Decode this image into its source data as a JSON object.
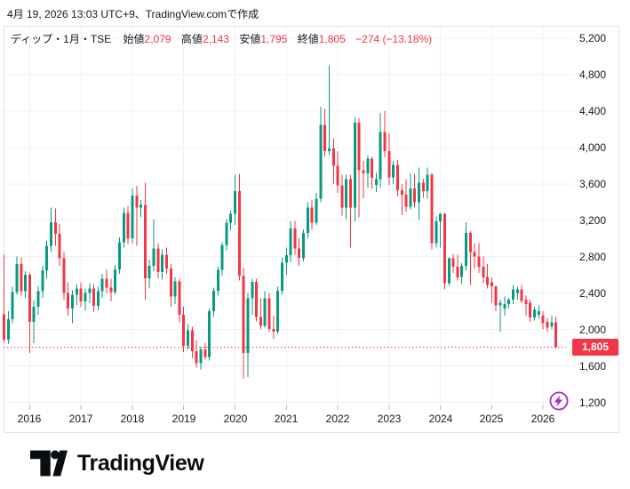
{
  "header": {
    "created_text": "4月 19, 2026 13:03 UTC+9、TradingView.comで作成"
  },
  "legend": {
    "symbol": "ディップ・1月・TSE",
    "open_label": "始値",
    "open_value": "2,079",
    "high_label": "高値",
    "high_value": "2,143",
    "low_label": "安値",
    "low_value": "1,795",
    "close_label": "終値",
    "close_value": "1,805",
    "change_value": "−274 (−13.18%)"
  },
  "price_axis": {
    "last_price_badge": "1,805"
  },
  "footer": {
    "brand": "TradingView",
    "logomark_icon": "tradingview-logomark"
  },
  "boost_button": {
    "icon": "lightning-icon"
  },
  "colors": {
    "up": "#089981",
    "down": "#F23645",
    "grid": "#EFF1F4",
    "frame": "#E0E3EB",
    "tick": "#B8BCC6",
    "text": "#131722",
    "badge_bg": "#F23645",
    "badge_text": "#FFFFFF",
    "accent_purple": "#A62BC6",
    "background": "#FFFFFF"
  },
  "chart_data": {
    "type": "candlestick",
    "title": "ディップ・1月・TSE",
    "symbol": "ディップ",
    "interval": "1月",
    "exchange": "TSE",
    "grid": true,
    "last_price": 1805,
    "price_line": {
      "value": 1805,
      "style": "dotted",
      "color": "#F23645"
    },
    "y_ticks": [
      5200,
      4800,
      4400,
      4000,
      3600,
      3200,
      2800,
      2400,
      2000,
      1600,
      1200
    ],
    "y_range_visible": [
      1130,
      5340
    ],
    "x_ticks": [
      "2016",
      "2017",
      "2018",
      "2019",
      "2020",
      "2021",
      "2022",
      "2023",
      "2024",
      "2025",
      "2026"
    ],
    "candle_fields": [
      "month",
      "open",
      "high",
      "low",
      "close"
    ],
    "candles": [
      [
        "2015-07",
        2165,
        2820,
        1855,
        1890
      ],
      [
        "2015-08",
        1890,
        2200,
        1845,
        2115
      ],
      [
        "2015-09",
        2115,
        2470,
        2070,
        2410
      ],
      [
        "2015-10",
        2410,
        2800,
        2380,
        2720
      ],
      [
        "2015-11",
        2720,
        2790,
        2370,
        2420
      ],
      [
        "2015-12",
        2420,
        2640,
        2350,
        2600
      ],
      [
        "2016-01",
        2600,
        2620,
        1740,
        2085
      ],
      [
        "2016-02",
        2085,
        2320,
        1850,
        2250
      ],
      [
        "2016-03",
        2250,
        2480,
        2160,
        2420
      ],
      [
        "2016-04",
        2420,
        2700,
        2350,
        2650
      ],
      [
        "2016-05",
        2650,
        2980,
        2560,
        2920
      ],
      [
        "2016-06",
        2920,
        3340,
        2850,
        3180
      ],
      [
        "2016-07",
        3180,
        3330,
        2920,
        3050
      ],
      [
        "2016-08",
        3050,
        3160,
        2700,
        2780
      ],
      [
        "2016-09",
        2780,
        2850,
        2330,
        2400
      ],
      [
        "2016-10",
        2400,
        2520,
        2150,
        2230
      ],
      [
        "2016-11",
        2230,
        2430,
        2070,
        2380
      ],
      [
        "2016-12",
        2380,
        2500,
        2270,
        2450
      ],
      [
        "2017-01",
        2450,
        2520,
        2250,
        2310
      ],
      [
        "2017-02",
        2310,
        2450,
        2210,
        2400
      ],
      [
        "2017-03",
        2400,
        2510,
        2290,
        2450
      ],
      [
        "2017-04",
        2450,
        2500,
        2190,
        2260
      ],
      [
        "2017-05",
        2260,
        2470,
        2210,
        2420
      ],
      [
        "2017-06",
        2420,
        2610,
        2350,
        2560
      ],
      [
        "2017-07",
        2560,
        2660,
        2400,
        2460
      ],
      [
        "2017-08",
        2460,
        2560,
        2310,
        2410
      ],
      [
        "2017-09",
        2410,
        2710,
        2380,
        2660
      ],
      [
        "2017-10",
        2660,
        3010,
        2610,
        2960
      ],
      [
        "2017-11",
        2960,
        3340,
        2900,
        3280
      ],
      [
        "2017-12",
        3280,
        3360,
        2940,
        3000
      ],
      [
        "2018-01",
        3000,
        3550,
        2950,
        3470
      ],
      [
        "2018-02",
        3470,
        3580,
        2920,
        3340
      ],
      [
        "2018-03",
        3340,
        3420,
        3230,
        3370
      ],
      [
        "2018-04",
        3370,
        3615,
        2330,
        2560
      ],
      [
        "2018-05",
        2560,
        2770,
        2450,
        2700
      ],
      [
        "2018-06",
        2700,
        3210,
        2640,
        2890
      ],
      [
        "2018-07",
        2890,
        2950,
        2560,
        2630
      ],
      [
        "2018-08",
        2630,
        2880,
        2550,
        2820
      ],
      [
        "2018-09",
        2820,
        2900,
        2610,
        2670
      ],
      [
        "2018-10",
        2670,
        2720,
        2250,
        2360
      ],
      [
        "2018-11",
        2360,
        2570,
        2280,
        2530
      ],
      [
        "2018-12",
        2530,
        2560,
        2080,
        2160
      ],
      [
        "2019-01",
        2160,
        2250,
        1750,
        1820
      ],
      [
        "2019-02",
        1820,
        2060,
        1780,
        1990
      ],
      [
        "2019-03",
        1990,
        2030,
        1690,
        1760
      ],
      [
        "2019-04",
        1760,
        1890,
        1580,
        1630
      ],
      [
        "2019-05",
        1630,
        1810,
        1560,
        1780
      ],
      [
        "2019-06",
        1780,
        1850,
        1670,
        1700
      ],
      [
        "2019-07",
        1700,
        2230,
        1660,
        2200
      ],
      [
        "2019-08",
        2200,
        2460,
        2140,
        2425
      ],
      [
        "2019-09",
        2425,
        2690,
        2370,
        2655
      ],
      [
        "2019-10",
        2655,
        2960,
        2590,
        2930
      ],
      [
        "2019-11",
        2930,
        3210,
        2870,
        3175
      ],
      [
        "2019-12",
        3175,
        3310,
        3090,
        3270
      ],
      [
        "2020-01",
        3270,
        3700,
        3150,
        3520
      ],
      [
        "2020-02",
        3520,
        3710,
        2540,
        2590
      ],
      [
        "2020-03",
        2590,
        2680,
        1460,
        1740
      ],
      [
        "2020-04",
        1740,
        2400,
        1480,
        2345
      ],
      [
        "2020-05",
        2345,
        2560,
        2160,
        2525
      ],
      [
        "2020-06",
        2525,
        2560,
        2090,
        2140
      ],
      [
        "2020-07",
        2140,
        2350,
        2000,
        2040
      ],
      [
        "2020-08",
        2040,
        2420,
        2020,
        2345
      ],
      [
        "2020-09",
        2345,
        2400,
        1970,
        2005
      ],
      [
        "2020-10",
        2005,
        2150,
        1900,
        1975
      ],
      [
        "2020-11",
        1975,
        2470,
        1950,
        2425
      ],
      [
        "2020-12",
        2425,
        2790,
        2380,
        2735
      ],
      [
        "2021-01",
        2735,
        2900,
        2600,
        2815
      ],
      [
        "2021-02",
        2815,
        3190,
        2740,
        3110
      ],
      [
        "2021-03",
        3110,
        3195,
        2820,
        2890
      ],
      [
        "2021-04",
        2890,
        3000,
        2700,
        2785
      ],
      [
        "2021-05",
        2785,
        3100,
        2750,
        3060
      ],
      [
        "2021-06",
        3060,
        3400,
        3000,
        3340
      ],
      [
        "2021-07",
        3340,
        3420,
        3100,
        3175
      ],
      [
        "2021-08",
        3175,
        3500,
        3150,
        3435
      ],
      [
        "2021-09",
        3435,
        4450,
        3400,
        4250
      ],
      [
        "2021-10",
        4250,
        4430,
        3900,
        3960
      ],
      [
        "2021-11",
        3960,
        4900,
        3920,
        3990
      ],
      [
        "2021-12",
        3990,
        4100,
        3600,
        3800
      ],
      [
        "2022-01",
        3800,
        3960,
        3500,
        3585
      ],
      [
        "2022-02",
        3585,
        3700,
        3250,
        3340
      ],
      [
        "2022-03",
        3340,
        3700,
        3210,
        3650
      ],
      [
        "2022-04",
        3650,
        3700,
        2900,
        3340
      ],
      [
        "2022-05",
        3340,
        4330,
        3190,
        4270
      ],
      [
        "2022-06",
        4270,
        4320,
        3230,
        3750
      ],
      [
        "2022-07",
        3750,
        3850,
        3440,
        3715
      ],
      [
        "2022-08",
        3715,
        3910,
        3560,
        3875
      ],
      [
        "2022-09",
        3875,
        3900,
        3550,
        3665
      ],
      [
        "2022-10",
        3590,
        3720,
        3510,
        3650
      ],
      [
        "2022-11",
        3650,
        4380,
        3560,
        4170
      ],
      [
        "2022-12",
        4170,
        4400,
        3890,
        3960
      ],
      [
        "2023-01",
        3960,
        4160,
        3590,
        3670
      ],
      [
        "2023-02",
        3670,
        3850,
        3600,
        3810
      ],
      [
        "2023-03",
        3810,
        3860,
        3460,
        3530
      ],
      [
        "2023-04",
        3530,
        3600,
        3255,
        3480
      ],
      [
        "2023-05",
        3480,
        3650,
        3290,
        3350
      ],
      [
        "2023-06",
        3350,
        3715,
        3320,
        3550
      ],
      [
        "2023-07",
        3550,
        3710,
        3340,
        3400
      ],
      [
        "2023-08",
        3400,
        3780,
        3205,
        3615
      ],
      [
        "2023-09",
        3615,
        3650,
        3445,
        3520
      ],
      [
        "2023-10",
        3520,
        3780,
        3435,
        3700
      ],
      [
        "2023-11",
        3700,
        3720,
        2880,
        2950
      ],
      [
        "2023-12",
        2950,
        3240,
        2900,
        3190
      ],
      [
        "2024-01",
        3190,
        3280,
        2900,
        3270
      ],
      [
        "2024-02",
        3270,
        3280,
        2440,
        2510
      ],
      [
        "2024-03",
        2510,
        2790,
        2480,
        2780
      ],
      [
        "2024-04",
        2780,
        2830,
        2620,
        2690
      ],
      [
        "2024-05",
        2690,
        2820,
        2540,
        2575
      ],
      [
        "2024-06",
        2575,
        2730,
        2500,
        2700
      ],
      [
        "2024-07",
        2700,
        3180,
        2650,
        3060
      ],
      [
        "2024-08",
        3060,
        3080,
        2490,
        2850
      ],
      [
        "2024-09",
        2850,
        2950,
        2670,
        2800
      ],
      [
        "2024-10",
        2800,
        2950,
        2620,
        2690
      ],
      [
        "2024-11",
        2690,
        2800,
        2510,
        2575
      ],
      [
        "2024-12",
        2575,
        2720,
        2450,
        2490
      ],
      [
        "2025-01",
        2520,
        2572,
        2295,
        2475
      ],
      [
        "2025-02",
        2475,
        2480,
        2200,
        2265
      ],
      [
        "2025-03",
        2265,
        2330,
        1970,
        2295
      ],
      [
        "2025-04",
        2230,
        2360,
        2150,
        2280
      ],
      [
        "2025-05",
        2280,
        2350,
        2230,
        2330
      ],
      [
        "2025-06",
        2330,
        2490,
        2280,
        2442
      ],
      [
        "2025-07",
        2395,
        2470,
        2330,
        2440
      ],
      [
        "2025-08",
        2440,
        2490,
        2290,
        2312
      ],
      [
        "2025-09",
        2328,
        2370,
        2150,
        2280
      ],
      [
        "2025-10",
        2295,
        2330,
        2085,
        2135
      ],
      [
        "2025-11",
        2135,
        2250,
        2100,
        2215
      ],
      [
        "2025-12",
        2160,
        2265,
        2120,
        2200
      ],
      [
        "2026-01",
        2150,
        2200,
        2000,
        2067
      ],
      [
        "2026-02",
        2083,
        2130,
        1970,
        2020
      ],
      [
        "2026-03",
        2035,
        2150,
        2000,
        2079
      ],
      [
        "2026-04",
        2079,
        2143,
        1795,
        1805
      ]
    ]
  }
}
